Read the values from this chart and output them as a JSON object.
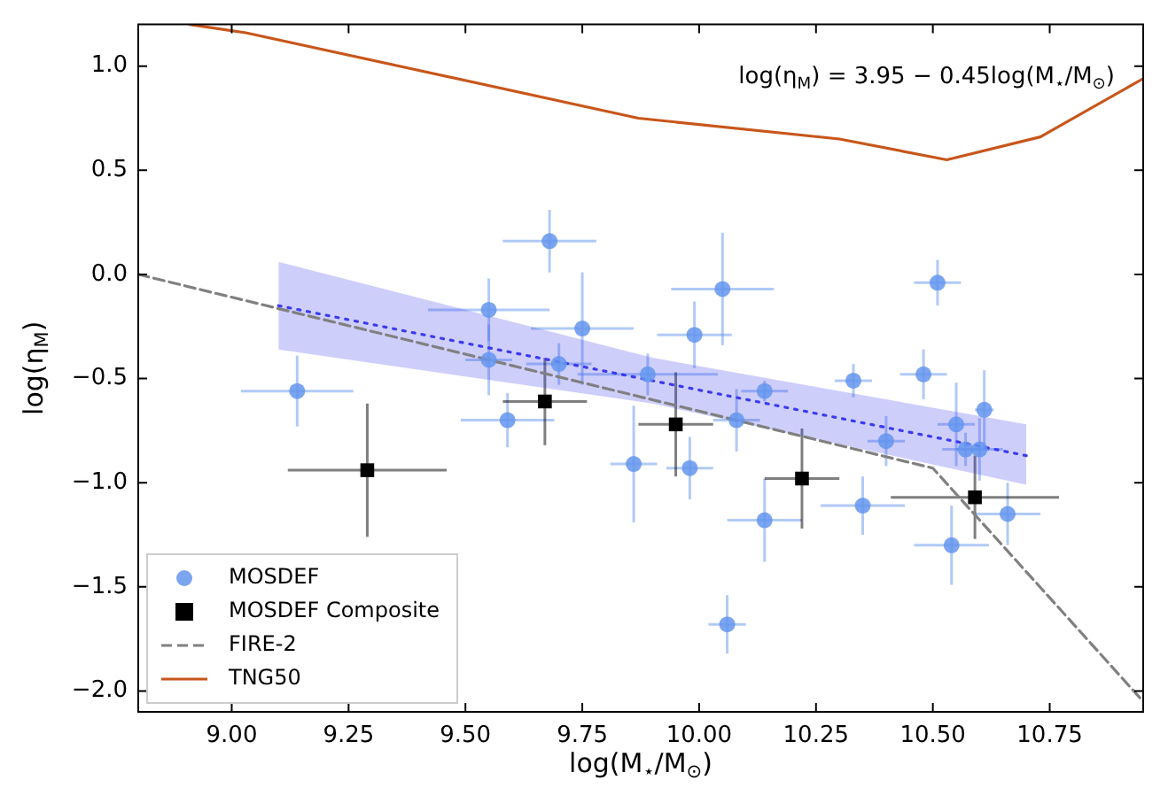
{
  "chart_data": {
    "type": "scatter",
    "xlabel": "log(M$_{⋆}$/M$_{⊙}$)",
    "ylabel": "log(η$_{M}$)",
    "annotations": [
      "log(η$_{M}$) = 3.95 − 0.45log(M$_{⋆}$/M$_{⊙}$)"
    ],
    "xlim": [
      8.8,
      10.95
    ],
    "ylim": [
      -2.1,
      1.2
    ],
    "xticks": [
      {
        "value": 9,
        "label": "9.00"
      },
      {
        "value": 9.25,
        "label": "9.25"
      },
      {
        "value": 9.5,
        "label": "9.50"
      },
      {
        "value": 9.75,
        "label": "9.75"
      },
      {
        "value": 10,
        "label": "10.00"
      },
      {
        "value": 10.25,
        "label": "10.25"
      },
      {
        "value": 10.5,
        "label": "10.50"
      },
      {
        "value": 10.75,
        "label": "10.75"
      }
    ],
    "yticks": [
      {
        "value": -2,
        "label": "−2.0"
      },
      {
        "value": -1.5,
        "label": "−1.5"
      },
      {
        "value": -1,
        "label": "−1.0"
      },
      {
        "value": -0.5,
        "label": "−0.5"
      },
      {
        "value": 0,
        "label": "0.0"
      },
      {
        "value": 0.5,
        "label": "0.5"
      },
      {
        "value": 1,
        "label": "1.0"
      }
    ],
    "grid": false,
    "legend": "bottom left",
    "series": [
      {
        "type": "line",
        "color": "#3b3bef",
        "line_style": "dotted",
        "marker": "none",
        "x": [
          9.1,
          9.9,
          10.7
        ],
        "values": [
          -0.15,
          -0.51,
          -0.87
        ],
        "lower": [
          -0.36,
          -0.62,
          -1.01
        ],
        "upper": [
          0.06,
          -0.4,
          -0.72
        ]
      },
      {
        "type": "scatter",
        "name": "MOSDEF",
        "color": "#6495ed",
        "marker": "circle",
        "x": [
          9.14,
          9.55,
          9.55,
          9.59,
          9.68,
          9.7,
          9.75,
          9.89,
          9.86,
          9.99,
          9.98,
          10.05,
          10.06,
          10.08,
          10.14,
          10.14,
          10.33,
          10.35,
          10.4,
          10.48,
          10.51,
          10.54,
          10.55,
          10.57,
          10.6,
          10.61,
          10.66
        ],
        "values": [
          -0.56,
          -0.17,
          -0.41,
          -0.7,
          0.16,
          -0.43,
          -0.26,
          -0.48,
          -0.91,
          -0.29,
          -0.93,
          -0.07,
          -1.68,
          -0.7,
          -0.56,
          -1.18,
          -0.51,
          -1.11,
          -0.8,
          -0.48,
          -0.04,
          -1.3,
          -0.72,
          -0.84,
          -0.84,
          -0.65,
          -1.15
        ],
        "xerrors": [
          0.12,
          0.13,
          0.05,
          0.1,
          0.1,
          0.07,
          0.11,
          0.15,
          0.05,
          0.08,
          0.05,
          0.11,
          0.04,
          0.05,
          0.05,
          0.08,
          0.04,
          0.09,
          0.04,
          0.05,
          0.05,
          0.08,
          0.04,
          0.05,
          0.05,
          0.02,
          0.07
        ],
        "errors": [
          0.17,
          0.15,
          0.17,
          0.13,
          0.15,
          0.1,
          0.27,
          0.1,
          0.28,
          0.16,
          0.15,
          0.27,
          0.14,
          0.15,
          0.05,
          0.2,
          0.08,
          0.14,
          0.12,
          0.12,
          0.11,
          0.19,
          0.2,
          0.08,
          0.15,
          0.19,
          0.15
        ]
      },
      {
        "type": "scatter",
        "name": "MOSDEF Composite",
        "color": "#000000",
        "marker": "square",
        "x": [
          9.29,
          9.67,
          9.95,
          10.22,
          10.59
        ],
        "values": [
          -0.94,
          -0.61,
          -0.72,
          -0.98,
          -1.07
        ],
        "xerrors": [
          0.17,
          0.09,
          0.08,
          0.08,
          0.18
        ],
        "errors": [
          0.32,
          0.21,
          0.25,
          0.24,
          0.2
        ]
      },
      {
        "type": "line",
        "name": "FIRE-2",
        "color": "#808080",
        "line_style": "dashed",
        "marker": "none",
        "x": [
          8.8,
          10.5,
          10.95
        ],
        "values": [
          0.0,
          -0.93,
          -2.05
        ]
      },
      {
        "type": "line",
        "name": "TNG50",
        "color": "#c8561a",
        "line_style": "solid",
        "marker": "none",
        "x": [
          8.91,
          9.03,
          9.87,
          10.3,
          10.53,
          10.73,
          10.95
        ],
        "values": [
          1.2,
          1.16,
          0.75,
          0.65,
          0.55,
          0.66,
          0.94
        ]
      }
    ]
  }
}
